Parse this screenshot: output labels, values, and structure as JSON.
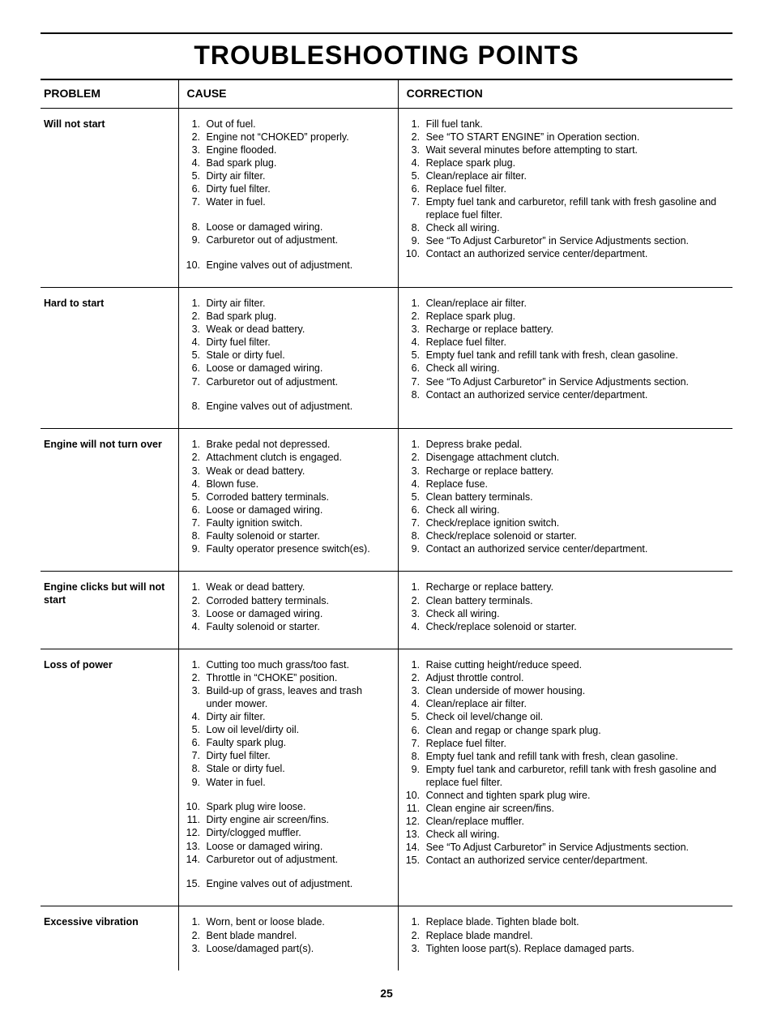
{
  "title": "TROUBLESHOOTING POINTS",
  "page_number": "25",
  "headers": {
    "problem": "PROBLEM",
    "cause": "CAUSE",
    "correction": "CORRECTION"
  },
  "rows": [
    {
      "problem": "Will not start",
      "causes": [
        "Out of fuel.",
        "Engine not “CHOKED” properly.",
        "Engine flooded.",
        "Bad spark plug.",
        "Dirty air filter.",
        "Dirty fuel filter.",
        "Water in fuel.\n",
        "Loose or damaged wiring.",
        "Carburetor out of adjustment.\n",
        "Engine valves out of adjustment."
      ],
      "corrections": [
        "Fill fuel tank.",
        "See “TO START ENGINE” in Operation section.",
        "Wait several minutes before attempting to start.",
        "Replace spark plug.",
        "Clean/replace air filter.",
        "Replace fuel filter.",
        "Empty fuel tank and carburetor, refill tank with fresh gasoline and replace fuel filter.",
        "Check all wiring.",
        "See “To Adjust Carburetor” in Service Adjustments section.",
        "Contact an authorized service center/department."
      ]
    },
    {
      "problem": "Hard to start",
      "causes": [
        "Dirty air filter.",
        "Bad spark plug.",
        "Weak or dead battery.",
        "Dirty fuel filter.",
        "Stale or dirty fuel.",
        "Loose or damaged wiring.",
        "Carburetor out of adjustment.\n",
        "Engine valves out of adjustment."
      ],
      "corrections": [
        "Clean/replace air filter.",
        "Replace spark plug.",
        "Recharge or replace battery.",
        "Replace fuel filter.",
        "Empty fuel tank and refill tank with fresh, clean gasoline.",
        "Check all wiring.",
        "See “To Adjust Carburetor” in Service Adjustments section.",
        "Contact an authorized service center/department."
      ]
    },
    {
      "problem": "Engine will not turn over",
      "causes": [
        "Brake pedal not depressed.",
        "Attachment clutch is engaged.",
        "Weak or dead battery.",
        "Blown fuse.",
        "Corroded battery terminals.",
        "Loose or damaged wiring.",
        "Faulty ignition switch.",
        "Faulty solenoid or starter.",
        "Faulty operator presence switch(es)."
      ],
      "corrections": [
        "Depress brake pedal.",
        "Disengage attachment clutch.",
        "Recharge or replace battery.",
        "Replace fuse.",
        "Clean battery terminals.",
        "Check all wiring.",
        "Check/replace ignition switch.",
        "Check/replace solenoid or starter.",
        "Contact an authorized service center/department."
      ]
    },
    {
      "problem": "Engine clicks but will not start",
      "causes": [
        "Weak or dead battery.",
        "Corroded battery terminals.",
        "Loose or damaged wiring.",
        "Faulty solenoid or starter."
      ],
      "corrections": [
        "Recharge or replace battery.",
        "Clean battery terminals.",
        "Check all wiring.",
        "Check/replace solenoid or starter."
      ]
    },
    {
      "problem": "Loss of power",
      "causes": [
        "Cutting too much grass/too fast.",
        "Throttle in “CHOKE” position.",
        "Build-up of grass, leaves and trash under mower.",
        "Dirty air filter.",
        "Low oil level/dirty oil.",
        "Faulty spark plug.",
        "Dirty fuel filter.",
        "Stale or dirty fuel.",
        "Water in fuel.\n",
        "Spark plug wire loose.",
        "Dirty engine air screen/fins.",
        "Dirty/clogged muffler.",
        "Loose or damaged wiring.",
        "Carburetor out of adjustment.\n",
        "Engine valves out of adjustment."
      ],
      "corrections": [
        "Raise cutting height/reduce speed.",
        "Adjust throttle control.",
        "Clean underside of mower housing.",
        "Clean/replace air filter.",
        "Check oil level/change oil.",
        "Clean and regap or change spark plug.",
        "Replace fuel filter.",
        "Empty fuel tank and refill tank with fresh, clean gasoline.",
        "Empty fuel tank and carburetor, refill tank with fresh gasoline and replace fuel filter.",
        "Connect and tighten spark plug wire.",
        "Clean engine air screen/fins.",
        "Clean/replace muffler.",
        "Check all wiring.",
        "See “To Adjust Carburetor” in Service Adjustments section.",
        "Contact an authorized service center/department."
      ]
    },
    {
      "problem": "Excessive vibration",
      "causes": [
        "Worn, bent or loose blade.",
        "Bent blade mandrel.",
        "Loose/damaged part(s)."
      ],
      "corrections": [
        "Replace blade.  Tighten blade bolt.",
        "Replace blade mandrel.",
        "Tighten loose part(s).  Replace damaged parts."
      ]
    }
  ]
}
